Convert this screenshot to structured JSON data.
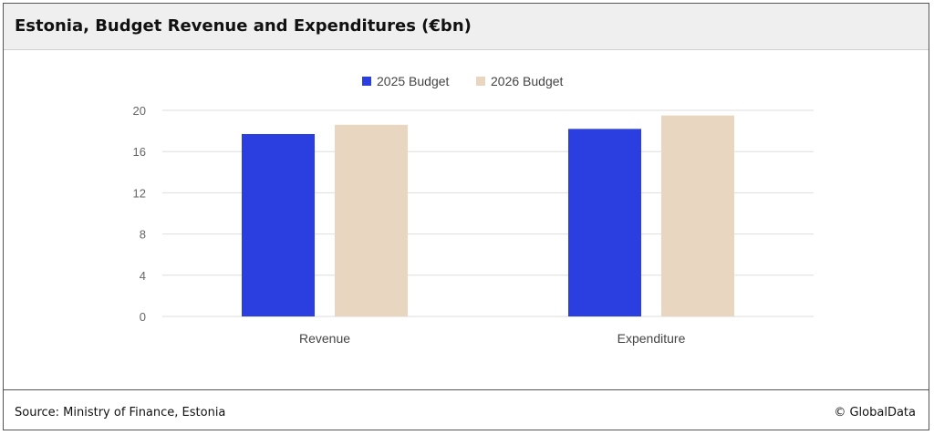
{
  "header": {
    "title": "Estonia, Budget Revenue and Expenditures (€bn)"
  },
  "footer": {
    "source": "Source: Ministry of Finance, Estonia",
    "copyright": "© GlobalData"
  },
  "chart_data": {
    "type": "bar",
    "title": "Estonia, Budget Revenue and Expenditures (€bn)",
    "categories": [
      "Revenue",
      "Expenditure"
    ],
    "series": [
      {
        "name": "2025 Budget",
        "color": "#2b3fe0",
        "values": [
          17.7,
          18.2
        ]
      },
      {
        "name": "2026 Budget",
        "color": "#e8d6c0",
        "values": [
          18.6,
          19.5
        ]
      }
    ],
    "ylim": [
      0,
      20
    ],
    "yticks": [
      0,
      4,
      8,
      12,
      16,
      20
    ],
    "xlabel": "",
    "ylabel": "",
    "legend_position": "top-center",
    "grid": true
  }
}
